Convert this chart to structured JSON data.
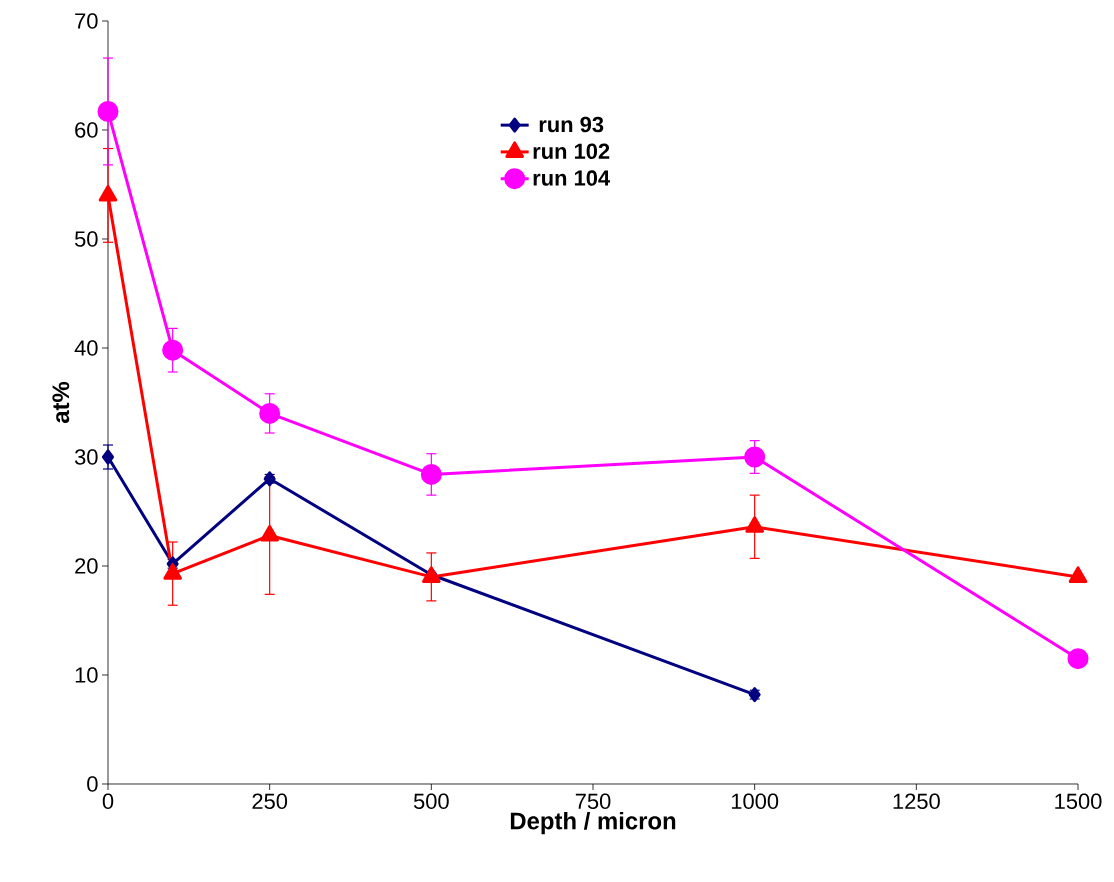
{
  "chart_data": {
    "type": "line",
    "xlabel": "Depth / micron",
    "ylabel": "at%",
    "x": [
      0,
      100,
      250,
      500,
      1000,
      1500
    ],
    "xlim": [
      0,
      1500
    ],
    "xticks": [
      0,
      250,
      500,
      750,
      1000,
      1250,
      1500
    ],
    "ylim": [
      0,
      70
    ],
    "yticks": [
      0,
      10,
      20,
      30,
      40,
      50,
      60,
      70
    ],
    "grid": false,
    "legend": "top",
    "line_style": "solid",
    "series": [
      {
        "name": "run 93",
        "color": "#000080",
        "marker": "diamond",
        "values": [
          30,
          20.2,
          28,
          19.2,
          8.2,
          null
        ],
        "errors": [
          1.1,
          0.4,
          0.4,
          null,
          0.4,
          null
        ]
      },
      {
        "name": "run 102",
        "color": "#ff0000",
        "marker": "triangle",
        "values": [
          54,
          19.3,
          22.8,
          19,
          23.6,
          19
        ],
        "errors": [
          4.3,
          2.9,
          5.4,
          2.2,
          2.9,
          null
        ]
      },
      {
        "name": "run 104",
        "color": "#ff00ff",
        "marker": "circle",
        "values": [
          61.7,
          39.8,
          34,
          28.4,
          30,
          11.5
        ],
        "errors": [
          4.9,
          2,
          1.8,
          1.9,
          1.5,
          null
        ]
      }
    ]
  }
}
